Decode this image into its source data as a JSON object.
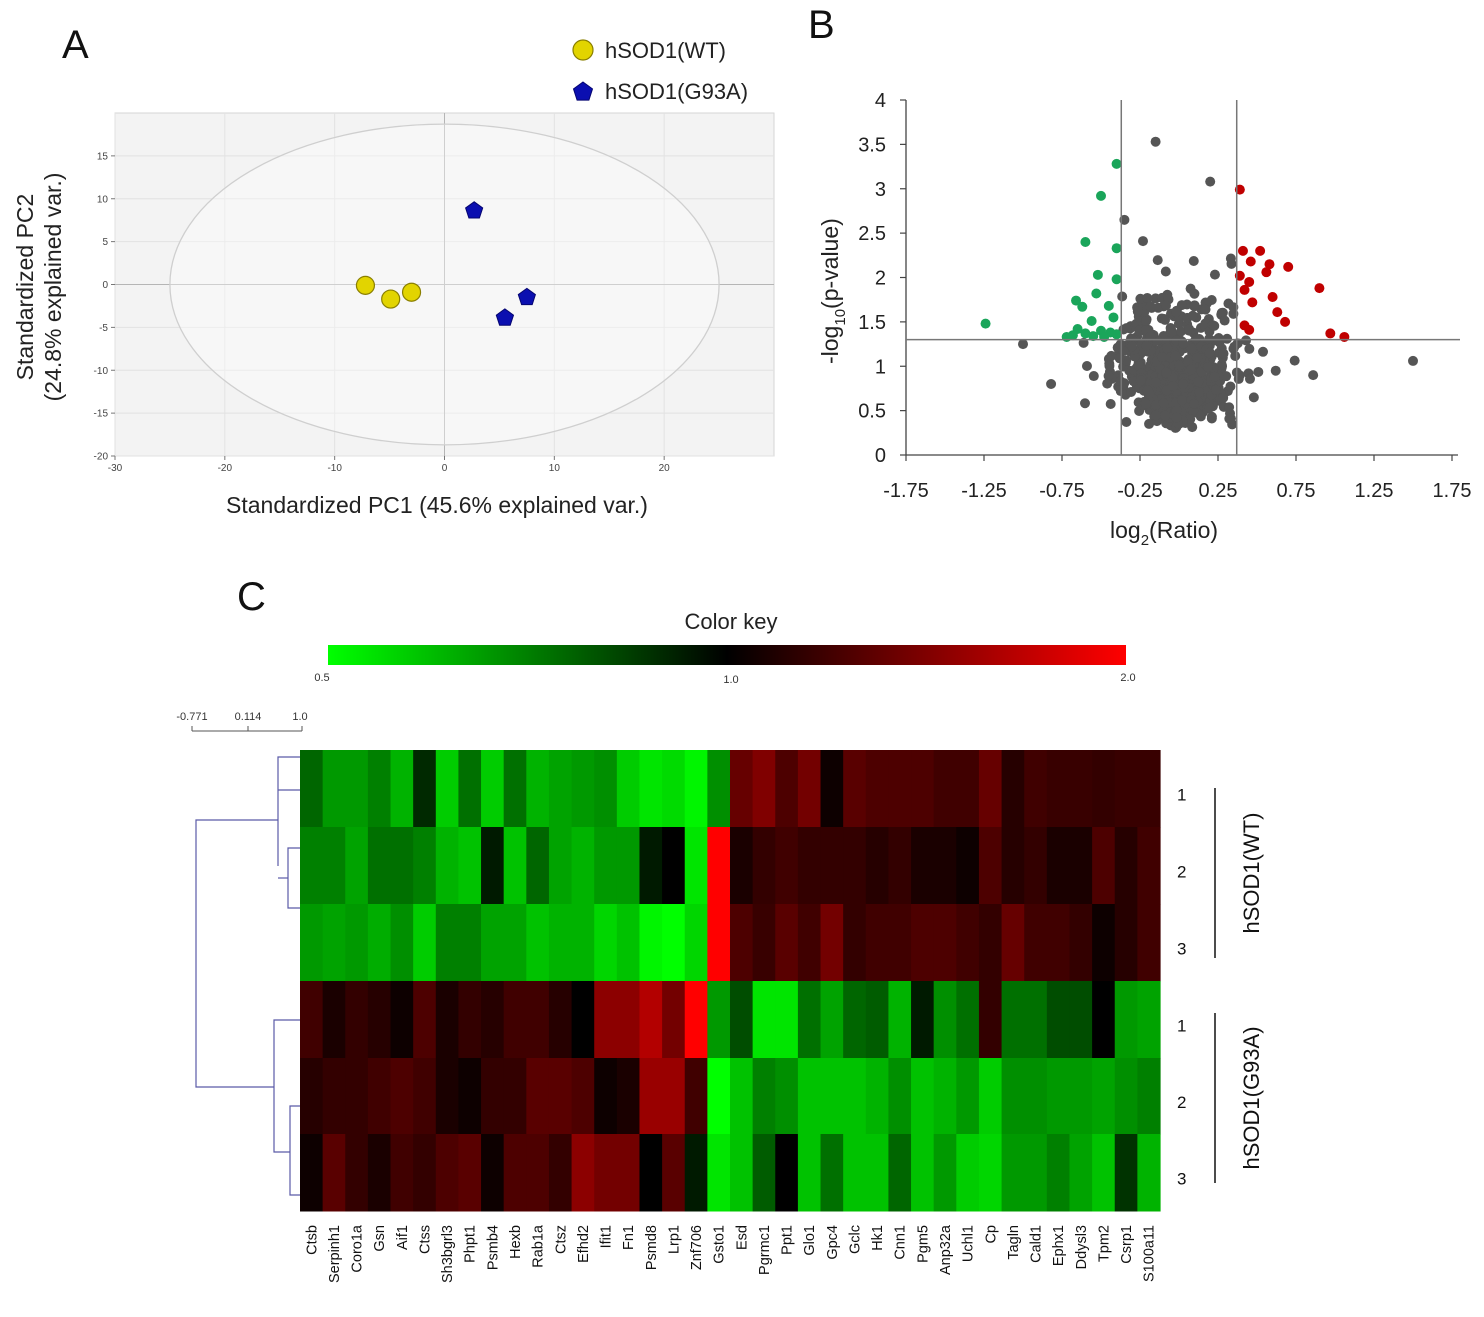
{
  "panels": {
    "a": "A",
    "b": "B",
    "c": "C"
  },
  "chart_data": [
    {
      "type": "scatter",
      "title": "",
      "xlabel": "Standardized PC1 (45.6% explained var.)",
      "ylabel_line1": "Standardized PC2",
      "ylabel_line2": "(24.8% explained var.)",
      "xlim": [
        -30,
        30
      ],
      "ylim": [
        -20,
        20
      ],
      "xticks": [
        -30,
        -20,
        -10,
        0,
        10,
        20
      ],
      "yticks": [
        -20,
        -15,
        -10,
        -5,
        0,
        5,
        10,
        15
      ],
      "legend_position": "top-right",
      "ellipse": {
        "cx": 0,
        "cy": 0,
        "rx": 25,
        "ry": 18.7
      },
      "series": [
        {
          "name": "hSOD1(WT)",
          "marker": "circle",
          "color": "#e2d400",
          "points": [
            [
              -7.2,
              -0.1
            ],
            [
              -4.9,
              -1.7
            ],
            [
              -3.0,
              -0.9
            ]
          ]
        },
        {
          "name": "hSOD1(G93A)",
          "marker": "pentagon",
          "color": "#0b0fb0",
          "points": [
            [
              2.7,
              8.6
            ],
            [
              7.5,
              -1.5
            ],
            [
              5.5,
              -3.9
            ]
          ]
        }
      ]
    },
    {
      "type": "scatter",
      "title": "",
      "xlabel": "log",
      "xlabel_sub": "2",
      "xlabel_tail": "(Ratio)",
      "ylabel": "-log",
      "ylabel_sub": "10",
      "ylabel_tail": "(p-value)",
      "xlim": [
        -1.75,
        1.75
      ],
      "ylim": [
        0,
        4
      ],
      "xticks": [
        "-1.75",
        "-1.25",
        "-0.75",
        "-0.25",
        "0.25",
        "0.75",
        "1.25",
        "1.75"
      ],
      "yticks": [
        "0",
        "0.5",
        "1",
        "1.5",
        "2",
        "2.5",
        "3",
        "3.5",
        "4"
      ],
      "thresholds": {
        "x": [
          -0.37,
          0.37
        ],
        "y": 1.3
      },
      "colors": {
        "down": "#1aa55a",
        "up": "#c00000",
        "ns": "#555555"
      },
      "down_points": [
        [
          -1.24,
          1.48
        ],
        [
          -0.4,
          3.28
        ],
        [
          -0.5,
          2.92
        ],
        [
          -0.6,
          2.4
        ],
        [
          -0.4,
          2.33
        ],
        [
          -0.52,
          2.03
        ],
        [
          -0.4,
          1.98
        ],
        [
          -0.53,
          1.82
        ],
        [
          -0.66,
          1.74
        ],
        [
          -0.62,
          1.67
        ],
        [
          -0.45,
          1.68
        ],
        [
          -0.42,
          1.55
        ],
        [
          -0.56,
          1.51
        ],
        [
          -0.65,
          1.42
        ],
        [
          -0.5,
          1.4
        ],
        [
          -0.44,
          1.38
        ],
        [
          -0.6,
          1.37
        ],
        [
          -0.68,
          1.35
        ],
        [
          -0.55,
          1.34
        ],
        [
          -0.48,
          1.33
        ],
        [
          -0.4,
          1.36
        ],
        [
          -0.72,
          1.33
        ]
      ],
      "up_points": [
        [
          0.39,
          2.99
        ],
        [
          0.41,
          2.3
        ],
        [
          0.52,
          2.3
        ],
        [
          0.46,
          2.18
        ],
        [
          0.58,
          2.15
        ],
        [
          0.7,
          2.12
        ],
        [
          0.56,
          2.06
        ],
        [
          0.39,
          2.02
        ],
        [
          0.45,
          1.95
        ],
        [
          0.42,
          1.86
        ],
        [
          0.6,
          1.78
        ],
        [
          0.47,
          1.72
        ],
        [
          0.9,
          1.88
        ],
        [
          0.63,
          1.61
        ],
        [
          0.68,
          1.5
        ],
        [
          0.42,
          1.46
        ],
        [
          0.45,
          1.41
        ],
        [
          0.97,
          1.37
        ],
        [
          1.06,
          1.33
        ]
      ],
      "extreme_ns_points": [
        [
          1.5,
          1.06
        ],
        [
          -0.15,
          3.53
        ],
        [
          0.2,
          3.08
        ],
        [
          0.86,
          0.9
        ],
        [
          -0.35,
          2.65
        ],
        [
          -1.0,
          1.25
        ],
        [
          -0.82,
          0.8
        ],
        [
          0.62,
          0.95
        ]
      ]
    },
    {
      "type": "heatmap",
      "color_key_title": "Color key",
      "color_key_ticks": [
        "0.5",
        "1.0",
        "2.0"
      ],
      "color_key_range": [
        0.5,
        1.0,
        2.0
      ],
      "dendrogram_scale": [
        "-0.771",
        "0.114",
        "1.0"
      ],
      "genes": [
        "Ctsb",
        "Serpinh1",
        "Coro1a",
        "Gsn",
        "Aif1",
        "Ctss",
        "Sh3bgrl3",
        "Phpt1",
        "Psmb4",
        "Hexb",
        "Rab1a",
        "Ctsz",
        "Efhd2",
        "Ifit1",
        "Fn1",
        "Psmd8",
        "Lrp1",
        "Znf706",
        "Gsto1",
        "Esd",
        "Pgrmc1",
        "Ppt1",
        "Glo1",
        "Gpc4",
        "Gclc",
        "Hk1",
        "Cnn1",
        "Pgm5",
        "Anp32a",
        "Uchl1",
        "Cp",
        "Tagln",
        "Cald1",
        "Ephx1",
        "Ddysl3",
        "Tpm2",
        "Csrp1",
        "S100a11"
      ],
      "row_labels": [
        "1",
        "2",
        "3",
        "1",
        "2",
        "3"
      ],
      "groups": [
        "hSOD1(WT)",
        "hSOD1(G93A)"
      ],
      "values": [
        [
          0.8,
          0.7,
          0.7,
          0.75,
          0.65,
          0.92,
          0.6,
          0.78,
          0.6,
          0.78,
          0.65,
          0.68,
          0.7,
          0.72,
          0.6,
          0.55,
          0.57,
          0.52,
          0.72,
          1.4,
          1.5,
          1.3,
          1.45,
          1.05,
          1.35,
          1.3,
          1.3,
          1.3,
          1.25,
          1.25,
          1.4,
          1.15,
          1.25,
          1.22,
          1.22,
          1.2,
          1.22,
          1.22
        ],
        [
          0.75,
          0.75,
          0.68,
          0.78,
          0.78,
          0.75,
          0.65,
          0.62,
          0.95,
          0.62,
          0.8,
          0.68,
          0.65,
          0.7,
          0.7,
          0.95,
          1.0,
          0.55,
          2.0,
          1.1,
          1.2,
          1.25,
          1.2,
          1.2,
          1.2,
          1.15,
          1.2,
          1.1,
          1.1,
          1.05,
          1.3,
          1.15,
          1.2,
          1.1,
          1.1,
          1.3,
          1.15,
          1.25
        ],
        [
          0.7,
          0.68,
          0.7,
          0.66,
          0.72,
          0.6,
          0.75,
          0.75,
          0.68,
          0.68,
          0.62,
          0.65,
          0.65,
          0.58,
          0.62,
          0.52,
          0.5,
          0.58,
          2.0,
          1.3,
          1.22,
          1.35,
          1.25,
          1.45,
          1.2,
          1.25,
          1.25,
          1.3,
          1.3,
          1.25,
          1.2,
          1.4,
          1.25,
          1.25,
          1.2,
          1.05,
          1.15,
          1.25
        ]
      ],
      "values_g93a": [
        [
          1.25,
          1.1,
          1.2,
          1.15,
          1.05,
          1.3,
          1.1,
          1.2,
          1.15,
          1.25,
          1.25,
          1.15,
          1.0,
          1.55,
          1.55,
          1.7,
          1.45,
          2.0,
          0.7,
          0.85,
          0.55,
          0.55,
          0.78,
          0.68,
          0.8,
          0.82,
          0.65,
          0.95,
          0.72,
          0.78,
          1.2,
          0.78,
          0.78,
          0.85,
          0.85,
          1.0,
          0.7,
          0.68
        ],
        [
          1.15,
          1.2,
          1.2,
          1.25,
          1.3,
          1.25,
          1.1,
          1.05,
          1.2,
          1.2,
          1.35,
          1.35,
          1.3,
          1.05,
          1.1,
          1.6,
          1.6,
          1.25,
          0.5,
          0.62,
          0.75,
          0.72,
          0.62,
          0.62,
          0.62,
          0.65,
          0.72,
          0.62,
          0.65,
          0.7,
          0.6,
          0.72,
          0.72,
          0.7,
          0.7,
          0.68,
          0.72,
          0.75
        ],
        [
          1.05,
          1.35,
          1.2,
          1.1,
          1.25,
          1.2,
          1.3,
          1.35,
          1.05,
          1.3,
          1.3,
          1.2,
          1.55,
          1.45,
          1.45,
          1.0,
          1.35,
          0.95,
          0.55,
          0.62,
          0.82,
          1.0,
          0.62,
          0.78,
          0.62,
          0.62,
          0.8,
          0.62,
          0.7,
          0.6,
          0.58,
          0.7,
          0.7,
          0.75,
          0.68,
          0.62,
          0.9,
          0.65
        ]
      ]
    }
  ]
}
